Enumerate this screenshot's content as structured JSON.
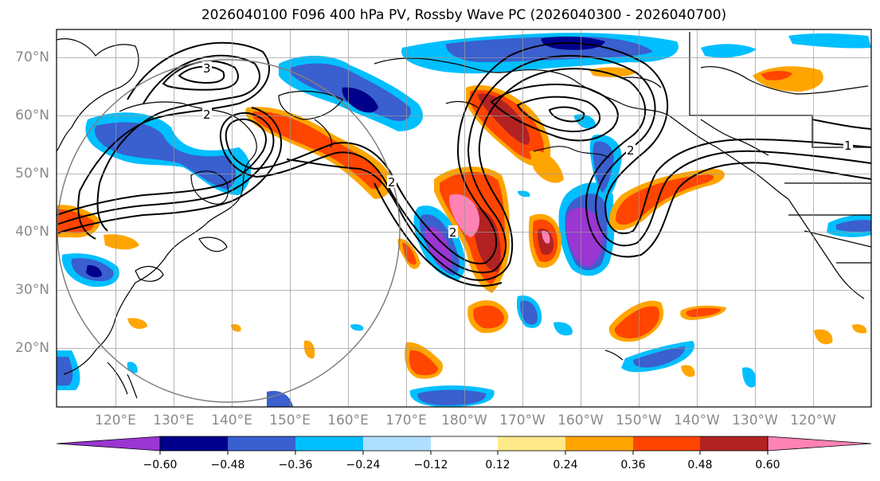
{
  "title": "2026040100 F096 400 hPa PV, Rossby Wave PC (2026040300 - 2026040700)",
  "lat_labels": [
    "70°N",
    "60°N",
    "50°N",
    "40°N",
    "30°N",
    "20°N"
  ],
  "lon_labels": [
    "120°E",
    "130°E",
    "140°E",
    "150°E",
    "160°E",
    "170°E",
    "180°W",
    "170°W",
    "160°W",
    "150°W",
    "140°W",
    "130°W",
    "120°W"
  ],
  "contour_labels": [
    "3",
    "2",
    "2",
    "2",
    "1",
    "2"
  ],
  "colorbar": {
    "ticks": [
      "−0.60",
      "−0.48",
      "−0.36",
      "−0.24",
      "−0.12",
      "0.12",
      "0.24",
      "0.36",
      "0.48",
      "0.60"
    ],
    "colors": [
      "#9a36d2",
      "#00008b",
      "#3a5fcf",
      "#00bfff",
      "#b0e0ff",
      "#ffffff",
      "#ffe98a",
      "#ffa500",
      "#ff4500",
      "#b22222",
      "#ff82b4"
    ]
  },
  "colors": {
    "negative_strong": "#9a36d2",
    "negative": "#3a5fcf",
    "positive": "#ff4500",
    "positive_strong": "#ff82b4",
    "grid": "#999999",
    "coastline": "#000000",
    "label": "#8a8a8a"
  }
}
